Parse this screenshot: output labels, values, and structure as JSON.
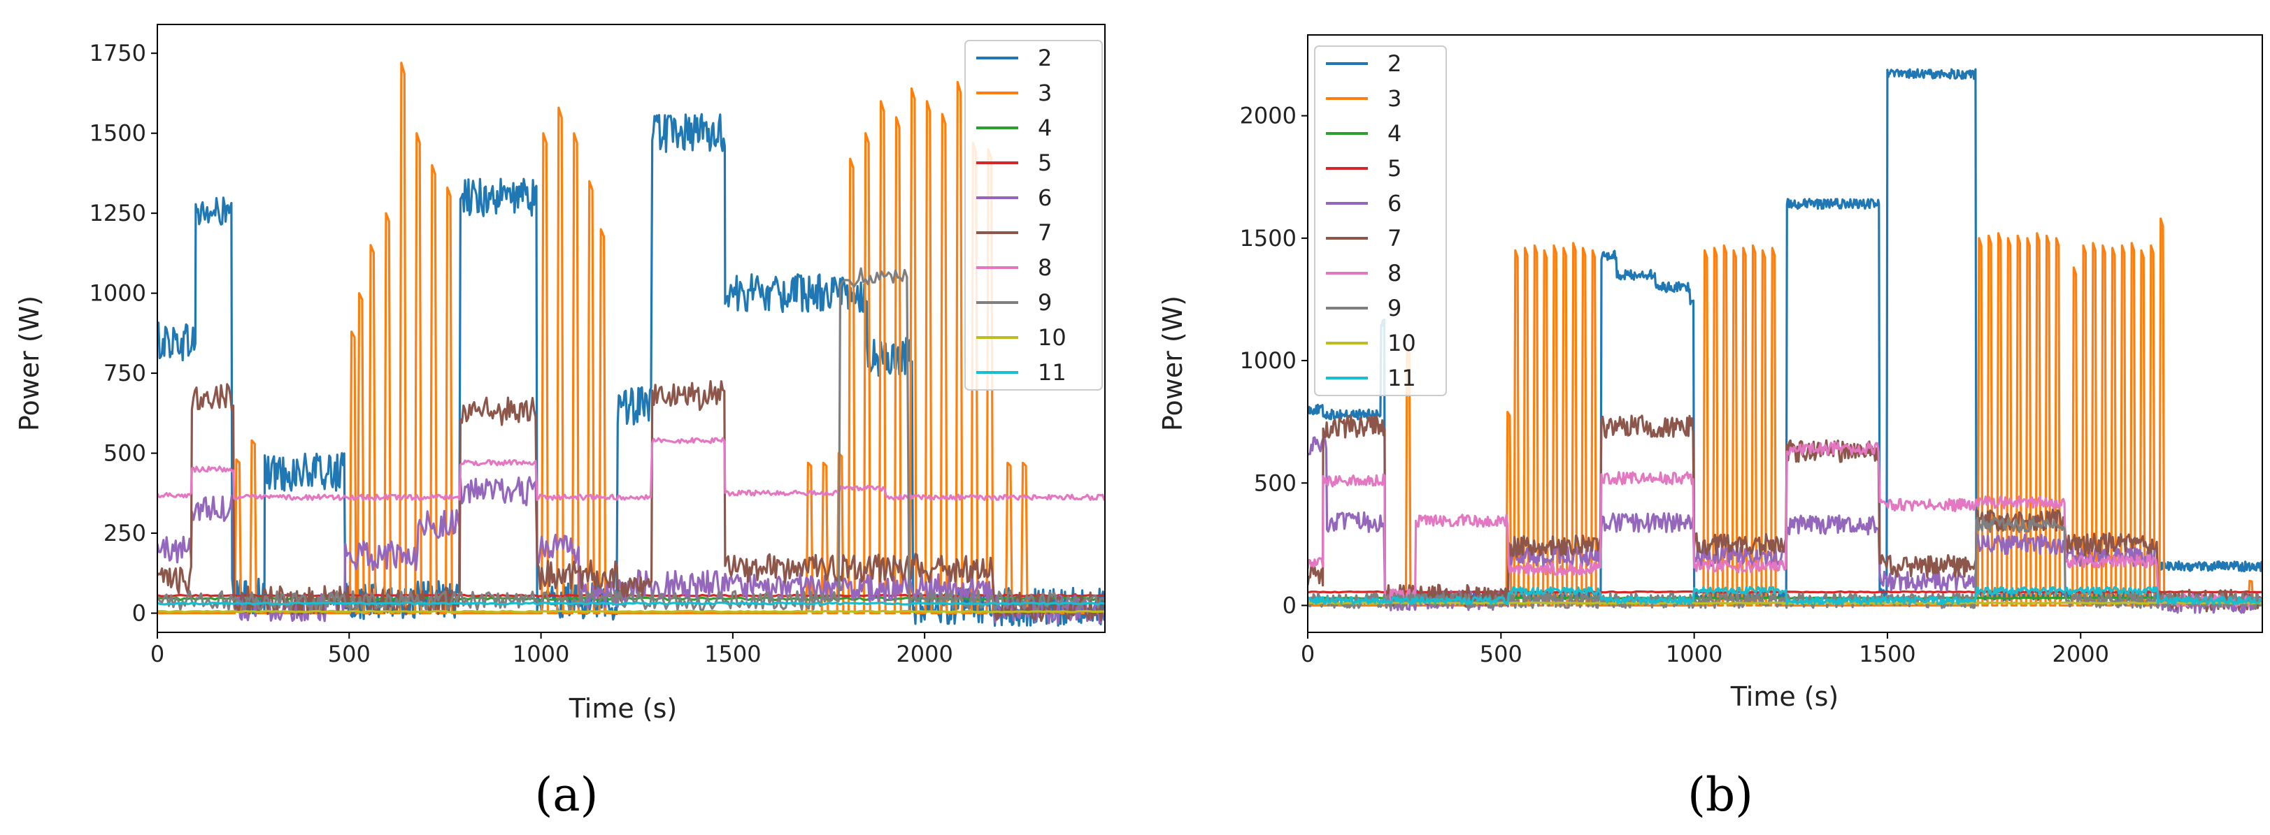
{
  "colors": {
    "2": "#1f77b4",
    "3": "#ff7f0e",
    "4": "#2ca02c",
    "5": "#d62728",
    "6": "#9467bd",
    "7": "#8c564b",
    "8": "#e377c2",
    "9": "#7f7f7f",
    "10": "#bcbd22",
    "11": "#17becf"
  },
  "chart_data": [
    {
      "type": "line",
      "panel": "a",
      "panel_label": "(a)",
      "xlabel": "Time (s)",
      "ylabel": "Power (W)",
      "xlim": [
        0,
        2470
      ],
      "ylim": [
        -60,
        1840
      ],
      "xticks": [
        0,
        500,
        1000,
        1500,
        2000
      ],
      "yticks": [
        0,
        250,
        500,
        750,
        1000,
        1250,
        1500,
        1750
      ],
      "legend_position": "top-right",
      "legend": [
        "2",
        "3",
        "4",
        "5",
        "6",
        "7",
        "8",
        "9",
        "10",
        "11"
      ],
      "series": [
        {
          "name": "2",
          "type": "noisy_steps",
          "noise": 60,
          "x_step": 3,
          "segments": [
            [
              0,
              100,
              850
            ],
            [
              100,
              195,
              1250
            ],
            [
              195,
              280,
              50
            ],
            [
              280,
              490,
              440
            ],
            [
              490,
              790,
              40
            ],
            [
              790,
              990,
              1300
            ],
            [
              990,
              1200,
              40
            ],
            [
              1200,
              1290,
              650
            ],
            [
              1290,
              1480,
              1500
            ],
            [
              1480,
              1850,
              1000
            ],
            [
              1850,
              1970,
              800
            ],
            [
              1970,
              2470,
              20
            ]
          ]
        },
        {
          "name": "3",
          "type": "pulses",
          "base": 0,
          "width": 8,
          "peaks": [
            [
              210,
              480
            ],
            [
              250,
              540
            ],
            [
              510,
              880
            ],
            [
              530,
              1000
            ],
            [
              560,
              1150
            ],
            [
              600,
              1250
            ],
            [
              640,
              1720
            ],
            [
              680,
              1500
            ],
            [
              720,
              1400
            ],
            [
              760,
              1330
            ],
            [
              1010,
              1500
            ],
            [
              1050,
              1580
            ],
            [
              1090,
              1500
            ],
            [
              1130,
              1350
            ],
            [
              1160,
              1200
            ],
            [
              1700,
              470
            ],
            [
              1740,
              470
            ],
            [
              1780,
              500
            ],
            [
              1810,
              1420
            ],
            [
              1850,
              1500
            ],
            [
              1890,
              1600
            ],
            [
              1930,
              1550
            ],
            [
              1970,
              1640
            ],
            [
              2010,
              1600
            ],
            [
              2050,
              1560
            ],
            [
              2090,
              1660
            ],
            [
              2130,
              1470
            ],
            [
              2170,
              1450
            ],
            [
              2220,
              470
            ],
            [
              2260,
              470
            ]
          ]
        },
        {
          "name": "4",
          "type": "noisy_steps",
          "noise": 4,
          "x_step": 10,
          "segments": [
            [
              0,
              2470,
              45
            ]
          ]
        },
        {
          "name": "5",
          "type": "noisy_steps",
          "noise": 2,
          "x_step": 10,
          "segments": [
            [
              0,
              2470,
              55
            ]
          ]
        },
        {
          "name": "6",
          "type": "noisy_steps",
          "noise": 45,
          "x_step": 4,
          "segments": [
            [
              0,
              90,
              200
            ],
            [
              90,
              200,
              330
            ],
            [
              200,
              490,
              20
            ],
            [
              490,
              680,
              180
            ],
            [
              680,
              790,
              280
            ],
            [
              790,
              990,
              380
            ],
            [
              990,
              1100,
              200
            ],
            [
              1100,
              1250,
              60
            ],
            [
              1250,
              1480,
              90
            ],
            [
              1480,
              2180,
              80
            ],
            [
              2180,
              2470,
              10
            ]
          ]
        },
        {
          "name": "7",
          "type": "noisy_steps",
          "noise": 45,
          "x_step": 4,
          "segments": [
            [
              0,
              90,
              100
            ],
            [
              90,
              200,
              680
            ],
            [
              200,
              790,
              40
            ],
            [
              790,
              990,
              630
            ],
            [
              990,
              1200,
              120
            ],
            [
              1200,
              1290,
              80
            ],
            [
              1290,
              1480,
              680
            ],
            [
              1480,
              2180,
              140
            ],
            [
              2180,
              2470,
              20
            ]
          ]
        },
        {
          "name": "8",
          "type": "noisy_steps",
          "noise": 8,
          "x_step": 4,
          "segments": [
            [
              0,
              90,
              370
            ],
            [
              90,
              200,
              450
            ],
            [
              200,
              790,
              362
            ],
            [
              790,
              990,
              470
            ],
            [
              990,
              1290,
              362
            ],
            [
              1290,
              1480,
              540
            ],
            [
              1480,
              1780,
              375
            ],
            [
              1780,
              1900,
              390
            ],
            [
              1900,
              2470,
              362
            ]
          ]
        },
        {
          "name": "9",
          "type": "noisy_steps",
          "noise": 30,
          "x_step": 6,
          "segments": [
            [
              0,
              1780,
              40
            ],
            [
              1780,
              1960,
              1050
            ],
            [
              1960,
              2470,
              40
            ]
          ]
        },
        {
          "name": "10",
          "type": "noisy_steps",
          "noise": 2,
          "x_step": 10,
          "segments": [
            [
              0,
              2470,
              5
            ]
          ]
        },
        {
          "name": "11",
          "type": "noisy_steps",
          "noise": 3,
          "x_step": 10,
          "segments": [
            [
              0,
              2470,
              30
            ]
          ]
        }
      ]
    },
    {
      "type": "line",
      "panel": "b",
      "panel_label": "(b)",
      "xlabel": "Time (s)",
      "ylabel": "Power (W)",
      "xlim": [
        0,
        2470
      ],
      "ylim": [
        -110,
        2330
      ],
      "xticks": [
        0,
        500,
        1000,
        1500,
        2000
      ],
      "yticks": [
        0,
        500,
        1000,
        1500,
        2000
      ],
      "legend_position": "top-left",
      "legend": [
        "2",
        "3",
        "4",
        "5",
        "6",
        "7",
        "8",
        "9",
        "10",
        "11"
      ],
      "series": [
        {
          "name": "2",
          "type": "noisy_steps",
          "noise": 20,
          "x_step": 2,
          "segments": [
            [
              0,
              40,
              800
            ],
            [
              40,
              190,
              780
            ],
            [
              190,
              200,
              1150
            ],
            [
              200,
              760,
              40
            ],
            [
              760,
              800,
              1430
            ],
            [
              800,
              900,
              1350
            ],
            [
              900,
              990,
              1300
            ],
            [
              990,
              1000,
              1250
            ],
            [
              1000,
              1240,
              40
            ],
            [
              1240,
              1480,
              1640
            ],
            [
              1480,
              1500,
              50
            ],
            [
              1500,
              1730,
              2170
            ],
            [
              1730,
              2200,
              40
            ],
            [
              2200,
              2470,
              160
            ]
          ]
        },
        {
          "name": "3",
          "type": "pulses",
          "base": 0,
          "width": 6,
          "peaks": [
            [
              260,
              1050
            ],
            [
              520,
              790
            ],
            [
              540,
              1450
            ],
            [
              565,
              1460
            ],
            [
              590,
              1470
            ],
            [
              615,
              1450
            ],
            [
              640,
              1470
            ],
            [
              665,
              1460
            ],
            [
              690,
              1480
            ],
            [
              715,
              1460
            ],
            [
              740,
              1450
            ],
            [
              1030,
              1450
            ],
            [
              1055,
              1460
            ],
            [
              1080,
              1470
            ],
            [
              1105,
              1450
            ],
            [
              1130,
              1460
            ],
            [
              1155,
              1470
            ],
            [
              1180,
              1450
            ],
            [
              1205,
              1460
            ],
            [
              1740,
              1500
            ],
            [
              1765,
              1510
            ],
            [
              1790,
              1520
            ],
            [
              1815,
              1500
            ],
            [
              1840,
              1510
            ],
            [
              1865,
              1500
            ],
            [
              1890,
              1520
            ],
            [
              1915,
              1510
            ],
            [
              1940,
              1500
            ],
            [
              1985,
              1380
            ],
            [
              2010,
              1470
            ],
            [
              2035,
              1480
            ],
            [
              2060,
              1470
            ],
            [
              2085,
              1460
            ],
            [
              2110,
              1470
            ],
            [
              2135,
              1480
            ],
            [
              2160,
              1450
            ],
            [
              2185,
              1470
            ],
            [
              2210,
              1580
            ],
            [
              2440,
              100
            ]
          ]
        },
        {
          "name": "4",
          "type": "noisy_steps",
          "noise": 2,
          "x_step": 10,
          "segments": [
            [
              0,
              2470,
              30
            ]
          ]
        },
        {
          "name": "5",
          "type": "noisy_steps",
          "noise": 2,
          "x_step": 10,
          "segments": [
            [
              0,
              2470,
              55
            ]
          ]
        },
        {
          "name": "6",
          "type": "noisy_steps",
          "noise": 40,
          "x_step": 3,
          "segments": [
            [
              0,
              50,
              650
            ],
            [
              50,
              200,
              340
            ],
            [
              200,
              520,
              20
            ],
            [
              520,
              760,
              200
            ],
            [
              760,
              1000,
              340
            ],
            [
              1000,
              1240,
              200
            ],
            [
              1240,
              1480,
              330
            ],
            [
              1480,
              1730,
              100
            ],
            [
              1730,
              1960,
              250
            ],
            [
              1960,
              2200,
              200
            ],
            [
              2200,
              2470,
              10
            ]
          ]
        },
        {
          "name": "7",
          "type": "noisy_steps",
          "noise": 45,
          "x_step": 3,
          "segments": [
            [
              0,
              40,
              120
            ],
            [
              40,
              200,
              730
            ],
            [
              200,
              520,
              40
            ],
            [
              520,
              760,
              240
            ],
            [
              760,
              1000,
              730
            ],
            [
              1000,
              1240,
              250
            ],
            [
              1240,
              1480,
              630
            ],
            [
              1480,
              1730,
              160
            ],
            [
              1730,
              1960,
              350
            ],
            [
              1960,
              2200,
              250
            ],
            [
              2200,
              2470,
              20
            ]
          ]
        },
        {
          "name": "8",
          "type": "noisy_steps",
          "noise": 25,
          "x_step": 3,
          "segments": [
            [
              0,
              40,
              170
            ],
            [
              40,
              200,
              510
            ],
            [
              200,
              280,
              40
            ],
            [
              280,
              520,
              345
            ],
            [
              520,
              760,
              150
            ],
            [
              760,
              1000,
              520
            ],
            [
              1000,
              1240,
              160
            ],
            [
              1240,
              1480,
              640
            ],
            [
              1480,
              1730,
              410
            ],
            [
              1730,
              1960,
              420
            ],
            [
              1960,
              2200,
              180
            ],
            [
              2200,
              2470,
              20
            ]
          ]
        },
        {
          "name": "9",
          "type": "noisy_steps",
          "noise": 30,
          "x_step": 3,
          "segments": [
            [
              0,
              1730,
              20
            ],
            [
              1730,
              1960,
              330
            ],
            [
              1960,
              2470,
              20
            ]
          ]
        },
        {
          "name": "10",
          "type": "noisy_steps",
          "noise": 2,
          "x_step": 10,
          "segments": [
            [
              0,
              2470,
              10
            ]
          ]
        },
        {
          "name": "11",
          "type": "noisy_steps",
          "noise": 15,
          "x_step": 3,
          "segments": [
            [
              0,
              520,
              20
            ],
            [
              520,
              760,
              60
            ],
            [
              760,
              1000,
              20
            ],
            [
              1000,
              1240,
              60
            ],
            [
              1240,
              1730,
              20
            ],
            [
              1730,
              2200,
              60
            ],
            [
              2200,
              2470,
              20
            ]
          ]
        }
      ]
    }
  ]
}
